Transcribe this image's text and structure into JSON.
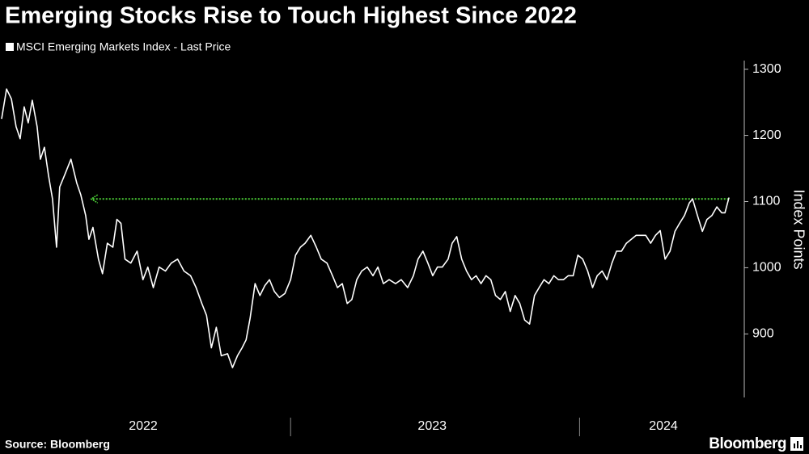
{
  "chart_data": {
    "type": "line",
    "title": "Emerging Stocks Rise to Touch Highest Since 2022",
    "y_label": "Index Points",
    "source": "Source: Bloomberg",
    "brand": "Bloomberg",
    "x": [
      2022.0,
      2022.017,
      2022.034,
      2022.05,
      2022.064,
      2022.078,
      2022.092,
      2022.106,
      2022.123,
      2022.134,
      2022.148,
      2022.162,
      2022.176,
      2022.19,
      2022.201,
      2022.218,
      2022.24,
      2022.26,
      2022.274,
      2022.291,
      2022.302,
      2022.316,
      2022.335,
      2022.349,
      2022.366,
      2022.385,
      2022.399,
      2022.413,
      2022.427,
      2022.447,
      2022.469,
      2022.489,
      2022.506,
      2022.525,
      2022.545,
      2022.567,
      2022.587,
      2022.609,
      2022.631,
      2022.654,
      2022.673,
      2022.693,
      2022.709,
      2022.726,
      2022.743,
      2022.76,
      2022.782,
      2022.799,
      2022.816,
      2022.832,
      2022.846,
      2022.86,
      2022.877,
      2022.894,
      2022.911,
      2022.927,
      2022.944,
      2022.961,
      2022.98,
      2023.0,
      2023.017,
      2023.034,
      2023.05,
      2023.07,
      2023.089,
      2023.106,
      2023.126,
      2023.145,
      2023.162,
      2023.179,
      2023.196,
      2023.212,
      2023.229,
      2023.246,
      2023.265,
      2023.285,
      2023.302,
      2023.321,
      2023.341,
      2023.363,
      2023.383,
      2023.405,
      2023.425,
      2023.441,
      2023.458,
      2023.475,
      2023.492,
      2023.508,
      2023.525,
      2023.545,
      2023.559,
      2023.575,
      2023.592,
      2023.609,
      2023.626,
      2023.642,
      2023.659,
      2023.676,
      2023.693,
      2023.709,
      2023.726,
      2023.743,
      2023.76,
      2023.777,
      2023.793,
      2023.81,
      2023.827,
      2023.844,
      2023.86,
      2023.877,
      2023.894,
      2023.911,
      2023.927,
      2023.944,
      2023.961,
      2023.978,
      2023.994,
      2024.011,
      2024.028,
      2024.045,
      2024.061,
      2024.078,
      2024.095,
      2024.112,
      2024.128,
      2024.145,
      2024.162,
      2024.179,
      2024.196,
      2024.212,
      2024.229,
      2024.246,
      2024.263,
      2024.279,
      2024.296,
      2024.313,
      2024.33,
      2024.346,
      2024.363,
      2024.38,
      2024.391,
      2024.408,
      2024.425,
      2024.441,
      2024.458,
      2024.475,
      2024.492,
      2024.503,
      2024.517
    ],
    "series": [
      {
        "name": "MSCI Emerging Markets Index - Last Price",
        "color": "#ffffff",
        "values": [
          1225,
          1270,
          1255,
          1213,
          1195,
          1243,
          1219,
          1253,
          1213,
          1164,
          1182,
          1140,
          1104,
          1031,
          1122,
          1140,
          1164,
          1128,
          1110,
          1079,
          1043,
          1061,
          1013,
          991,
          1037,
          1031,
          1073,
          1067,
          1013,
          1007,
          1025,
          982,
          1001,
          970,
          1001,
          995,
          1007,
          1013,
          995,
          988,
          970,
          946,
          928,
          879,
          910,
          867,
          870,
          849,
          867,
          879,
          891,
          924,
          976,
          958,
          973,
          982,
          964,
          955,
          961,
          982,
          1019,
          1031,
          1037,
          1049,
          1031,
          1013,
          1007,
          988,
          970,
          976,
          946,
          952,
          982,
          995,
          1001,
          988,
          1001,
          976,
          982,
          976,
          982,
          970,
          988,
          1013,
          1025,
          1007,
          988,
          1001,
          1001,
          1013,
          1037,
          1047,
          1013,
          995,
          982,
          988,
          976,
          988,
          982,
          958,
          952,
          964,
          934,
          958,
          946,
          921,
          915,
          958,
          970,
          982,
          976,
          988,
          982,
          982,
          988,
          988,
          1019,
          1013,
          995,
          970,
          988,
          995,
          982,
          1007,
          1025,
          1025,
          1037,
          1043,
          1049,
          1049,
          1049,
          1037,
          1049,
          1056,
          1013,
          1025,
          1055,
          1067,
          1079,
          1098,
          1104,
          1079,
          1055,
          1073,
          1079,
          1092,
          1083,
          1083,
          1106
        ]
      }
    ],
    "reference_line": {
      "value": 1104,
      "x_from": 2022.31,
      "color": "#4cd137"
    },
    "xlim": [
      2022.0,
      2024.57
    ],
    "xticks": [
      {
        "value": 2022.49,
        "label": "2022"
      },
      {
        "value": 2023.49,
        "label": "2023"
      },
      {
        "value": 2024.29,
        "label": "2024"
      }
    ],
    "ylim": [
      804,
      1313
    ],
    "yticks": [
      900,
      1000,
      1100,
      1200,
      1300
    ],
    "grid": false
  }
}
